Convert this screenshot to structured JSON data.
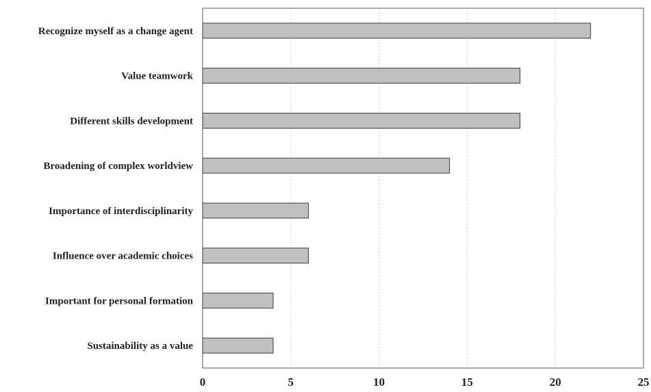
{
  "chart_data": {
    "type": "bar",
    "orientation": "horizontal",
    "categories": [
      "Recognize myself as a change agent",
      "Value teamwork",
      "Different skills development",
      "Broadening of complex worldview",
      "Importance of interdisciplinarity",
      "Influence over academic choices",
      "Important for personal formation",
      "Sustainability as a value"
    ],
    "values": [
      22,
      18,
      18,
      14,
      6,
      6,
      4,
      4
    ],
    "xlim": [
      0,
      25
    ],
    "xticks": [
      0,
      5,
      10,
      15,
      20,
      25
    ],
    "grid": "vertical-dotted",
    "legend": "none",
    "title": "",
    "xlabel": "",
    "ylabel": "",
    "colors": {
      "bar_fill": "#c0c0c0",
      "bar_stroke": "#3a3a3a",
      "axis": "#555555",
      "grid": "#d0d0d0"
    }
  }
}
